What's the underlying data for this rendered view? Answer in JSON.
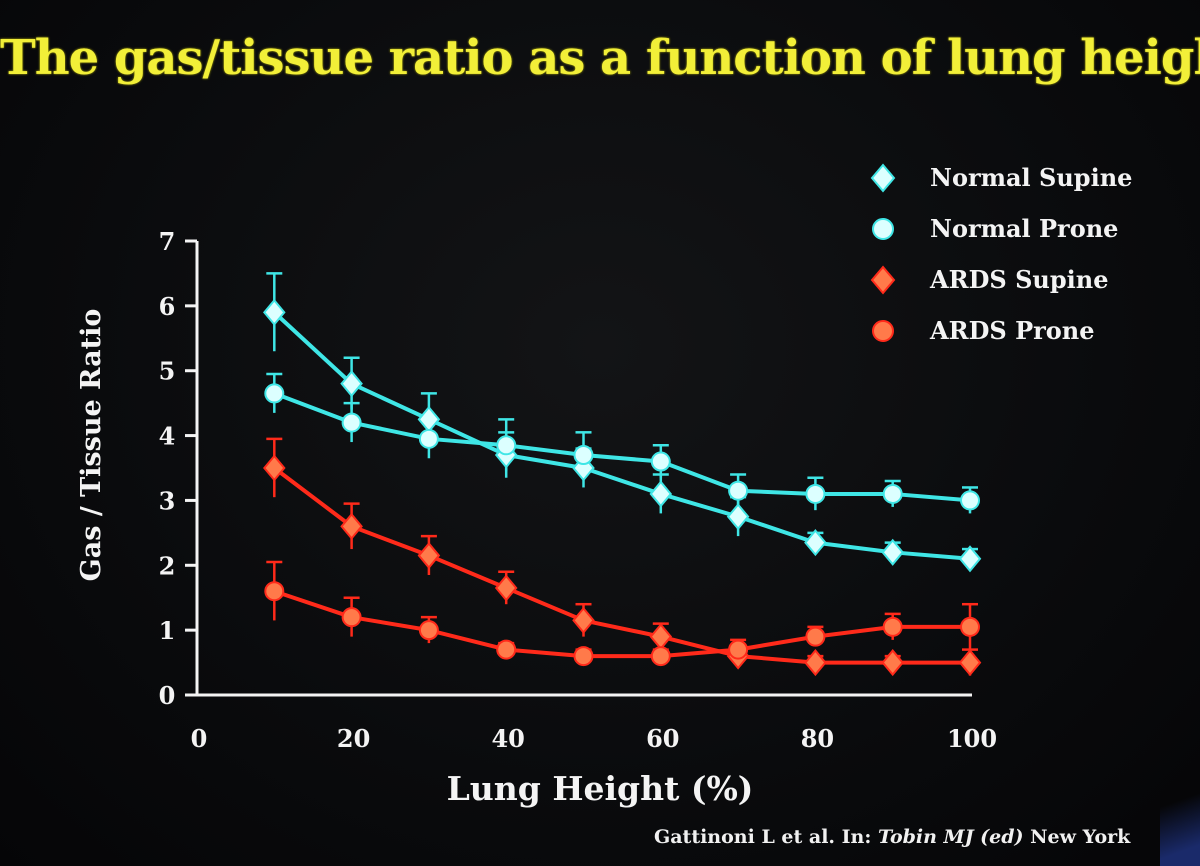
{
  "slide_title": "The gas/tissue ratio as a function of lung height",
  "citation": {
    "prefix": "Gattinoni L et al. In: ",
    "italic": "Tobin MJ (ed)",
    "suffix": " New York"
  },
  "colors": {
    "title": "#f2ef38",
    "normal": "#3fe6e6",
    "ards": "#ff2a1a",
    "normal_marker": "#dcffff",
    "ards_marker": "#ff7a4a"
  },
  "chart_data": {
    "type": "line",
    "xlabel": "Lung Height (%)",
    "ylabel": "Gas / Tissue Ratio",
    "xlim": [
      0,
      100
    ],
    "ylim": [
      0,
      7
    ],
    "xticks": [
      0,
      20,
      40,
      60,
      80,
      100
    ],
    "yticks": [
      0,
      1,
      2,
      3,
      4,
      5,
      6,
      7
    ],
    "x": [
      10,
      20,
      30,
      40,
      50,
      60,
      70,
      80,
      90,
      100
    ],
    "legend_position": "top-right",
    "grid": false,
    "series": [
      {
        "name": "Normal Supine",
        "marker": "diamond",
        "color_key": "normal",
        "values": [
          5.9,
          4.8,
          4.25,
          3.7,
          3.5,
          3.1,
          2.75,
          2.35,
          2.2,
          2.1
        ],
        "errors": [
          0.6,
          0.4,
          0.4,
          0.35,
          0.3,
          0.3,
          0.3,
          0.15,
          0.15,
          0.15
        ]
      },
      {
        "name": "Normal Prone",
        "marker": "circle",
        "color_key": "normal",
        "values": [
          4.65,
          4.2,
          3.95,
          3.85,
          3.7,
          3.6,
          3.15,
          3.1,
          3.1,
          3.0
        ],
        "errors": [
          0.3,
          0.3,
          0.3,
          0.4,
          0.35,
          0.25,
          0.25,
          0.25,
          0.2,
          0.2
        ]
      },
      {
        "name": "ARDS Supine",
        "marker": "diamond",
        "color_key": "ards",
        "values": [
          3.5,
          2.6,
          2.15,
          1.65,
          1.15,
          0.9,
          0.6,
          0.5,
          0.5,
          0.5
        ],
        "errors": [
          0.45,
          0.35,
          0.3,
          0.25,
          0.25,
          0.2,
          0.15,
          0.1,
          0.1,
          0.2
        ]
      },
      {
        "name": "ARDS Prone",
        "marker": "circle",
        "color_key": "ards",
        "values": [
          1.6,
          1.2,
          1.0,
          0.7,
          0.6,
          0.6,
          0.7,
          0.9,
          1.05,
          1.05
        ],
        "errors": [
          0.45,
          0.3,
          0.2,
          0.1,
          0.1,
          0.1,
          0.15,
          0.15,
          0.2,
          0.35
        ]
      }
    ]
  }
}
